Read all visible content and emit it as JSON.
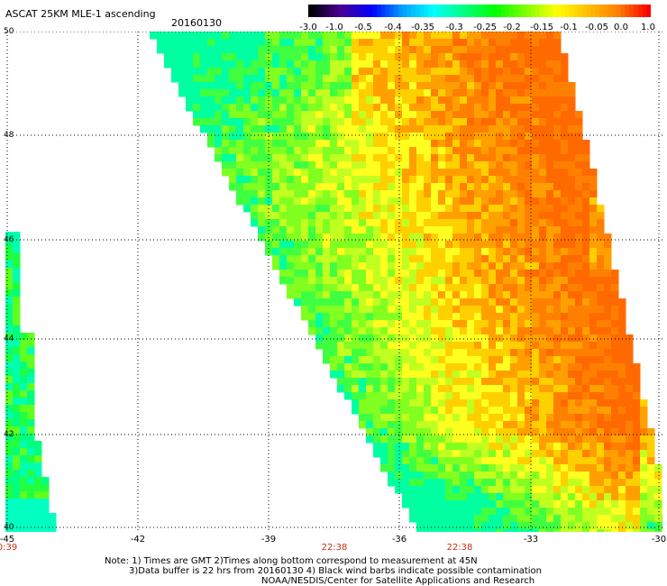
{
  "header": {
    "title": "ASCAT 25KM MLE-1 ascending",
    "date": "20160130"
  },
  "colorbar": {
    "labels": [
      "-3.0",
      "-1.0",
      "-0.5",
      "-0.4",
      "-0.35",
      "-0.3",
      "-0.25",
      "-0.2",
      "-0.15",
      "-0.1",
      "-0.05",
      "0.0",
      "1.0"
    ],
    "colors": [
      "#000000",
      "#4a0096",
      "#0000ff",
      "#00a0ff",
      "#00ffff",
      "#00ff80",
      "#00ff00",
      "#80ff00",
      "#ffff00",
      "#ffc000",
      "#ff8000",
      "#ff0000"
    ]
  },
  "map": {
    "lon_ticks": [
      "-45",
      "-42",
      "-39",
      "-36",
      "-33",
      "-30"
    ],
    "lat_ticks": [
      "50",
      "48",
      "46",
      "44",
      "42",
      "40"
    ],
    "lon_values": [
      -45,
      -42,
      -39,
      -36,
      -33,
      -30
    ],
    "lat_values": [
      50,
      48,
      46,
      44,
      42,
      40
    ],
    "time_labels": [
      "0:39",
      "22:38",
      "22:38"
    ],
    "time_lon": [
      -45,
      -37.8,
      -35.2
    ],
    "extent": {
      "lon": [
        -45,
        -30
      ],
      "lat": [
        40,
        50
      ]
    }
  },
  "notes": {
    "line1": "Note: 1) Times are GMT 2)Times along bottom correspond to measurement at 45N",
    "line2": "3)Data buffer is 22 hrs from 20160130 4) Black wind barbs indicate possible contamination",
    "line3": "NOAA/NESDIS/Center for Satellite Applications and Research"
  }
}
